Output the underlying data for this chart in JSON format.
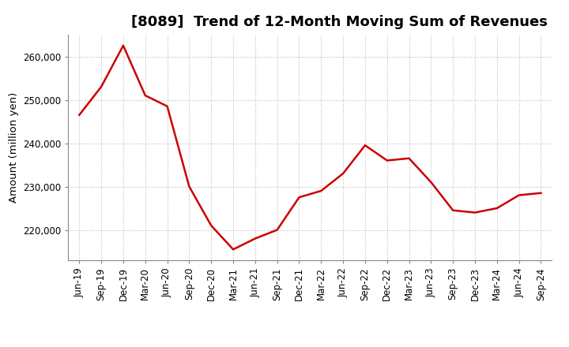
{
  "title": "[8089]  Trend of 12-Month Moving Sum of Revenues",
  "ylabel": "Amount (million yen)",
  "background_color": "#ffffff",
  "line_color": "#cc0000",
  "line_width": 1.8,
  "grid_color": "#bbbbbb",
  "tick_labels": [
    "Jun-19",
    "Sep-19",
    "Dec-19",
    "Mar-20",
    "Jun-20",
    "Sep-20",
    "Dec-20",
    "Mar-21",
    "Jun-21",
    "Sep-21",
    "Dec-21",
    "Mar-22",
    "Jun-22",
    "Sep-22",
    "Dec-22",
    "Mar-23",
    "Jun-23",
    "Sep-23",
    "Dec-23",
    "Mar-24",
    "Jun-24",
    "Sep-24"
  ],
  "values": [
    246500,
    253000,
    262500,
    251000,
    248500,
    230000,
    221000,
    215500,
    218000,
    220000,
    227500,
    229000,
    233000,
    239500,
    236000,
    236500,
    231000,
    224500,
    224000,
    225000,
    228000,
    228500
  ],
  "ylim_min": 213000,
  "ylim_max": 265000,
  "yticks": [
    220000,
    230000,
    240000,
    250000,
    260000
  ],
  "title_fontsize": 13,
  "label_fontsize": 9.5,
  "tick_fontsize": 8.5
}
